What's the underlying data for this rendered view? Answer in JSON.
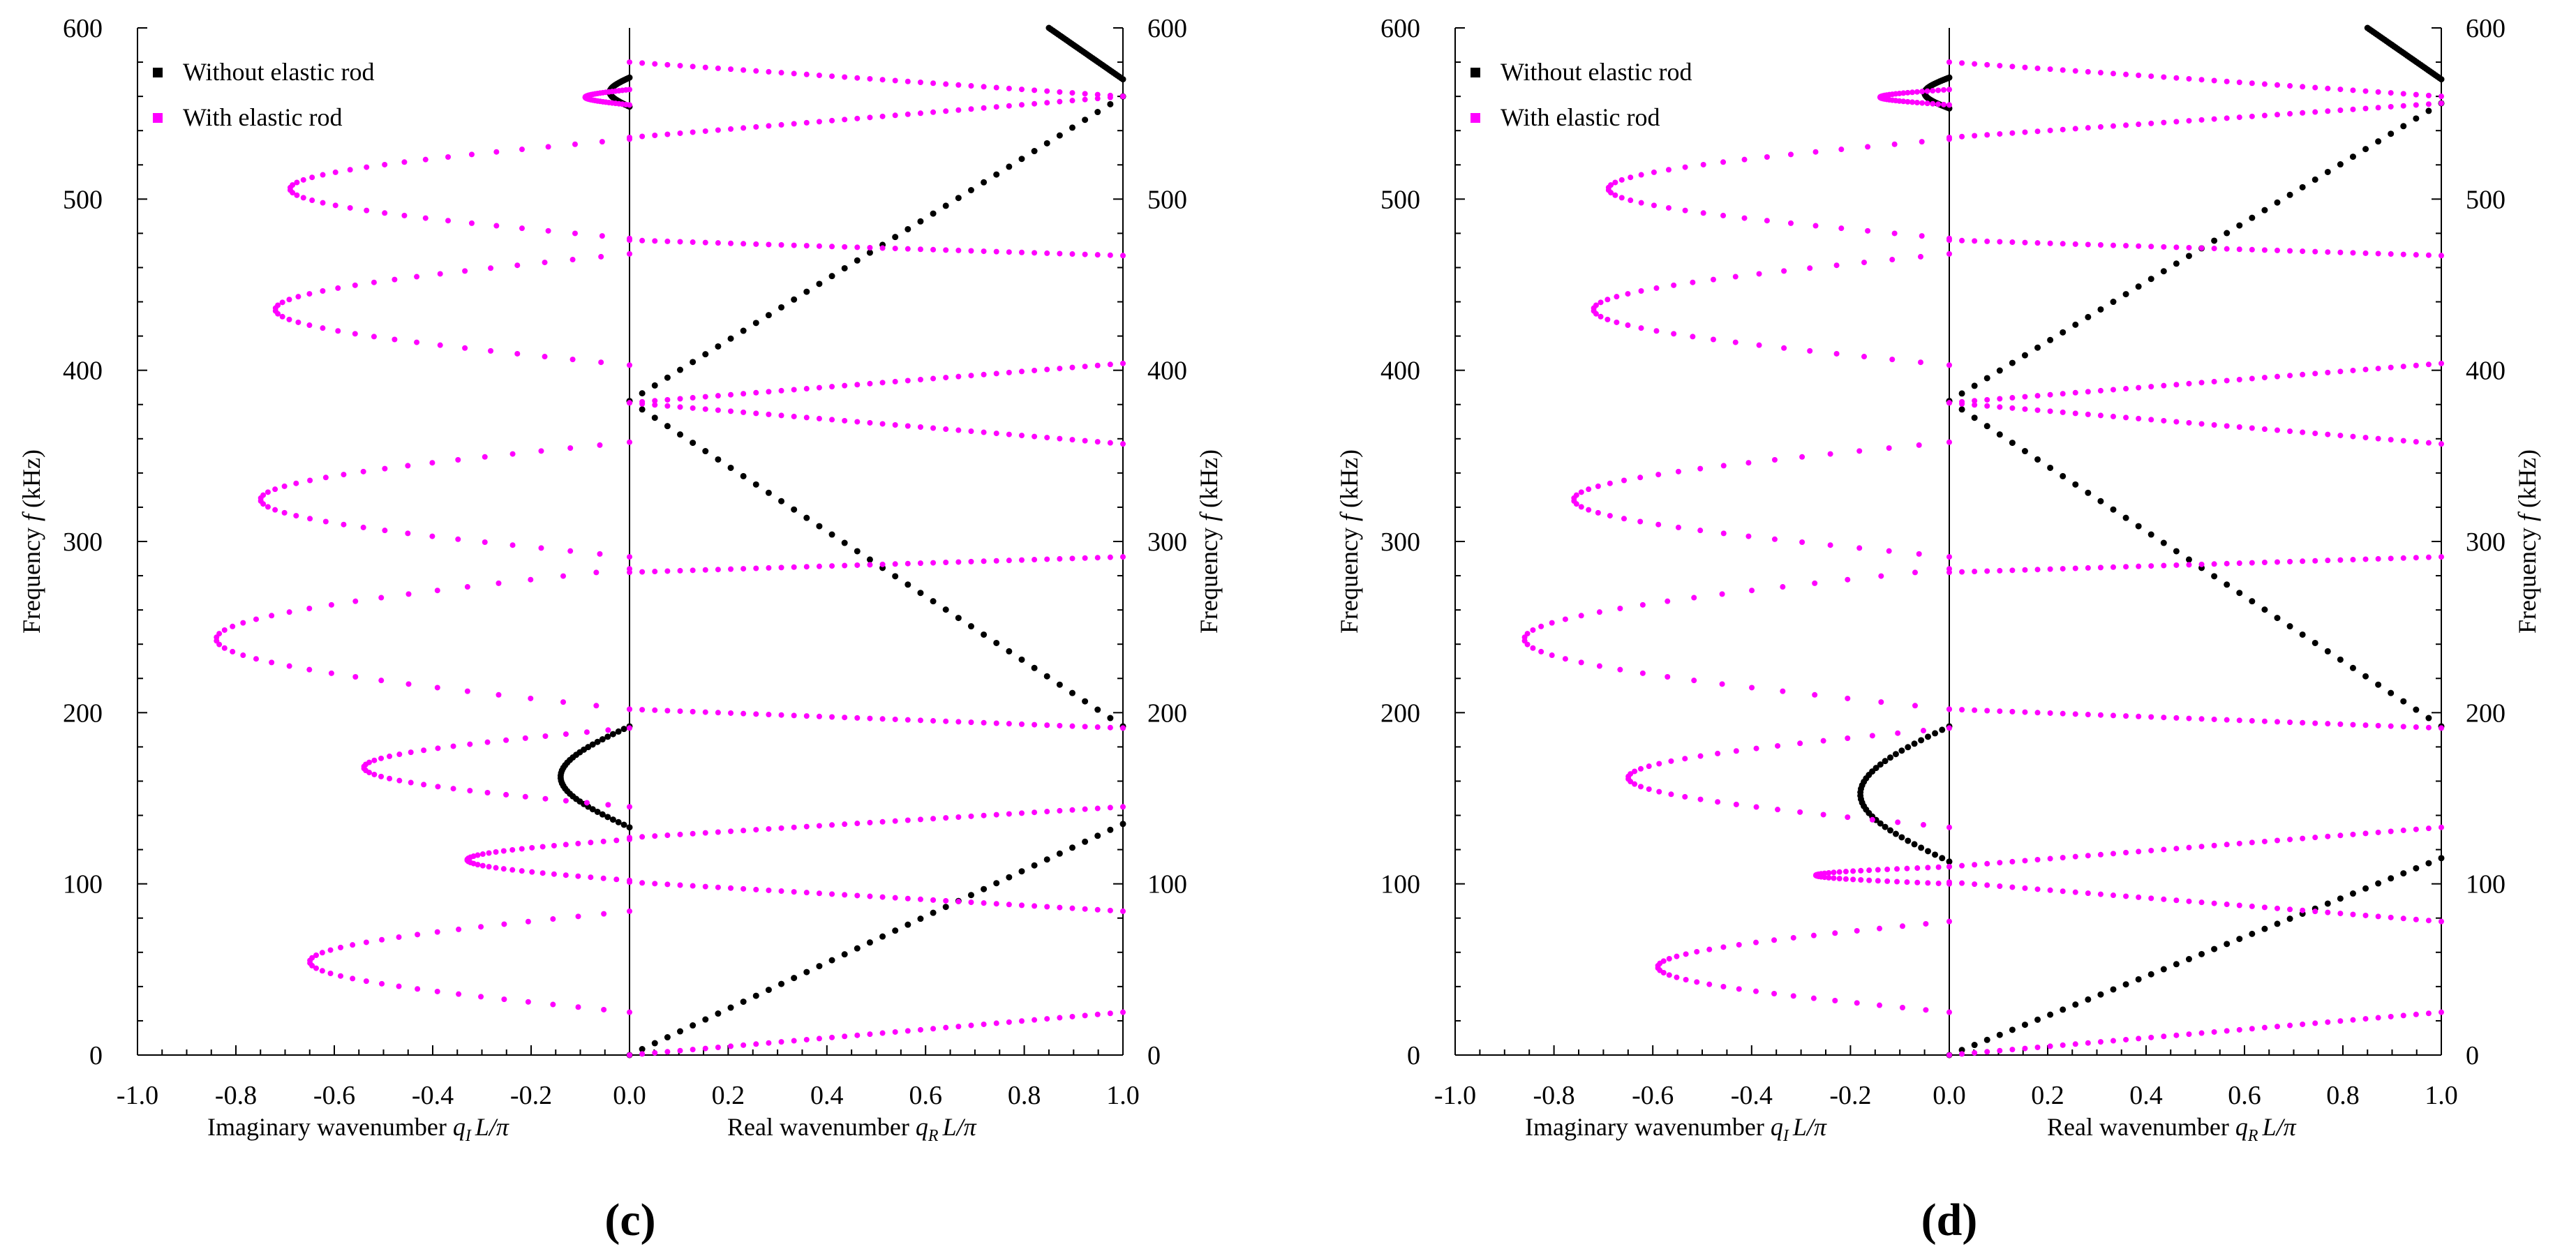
{
  "colors": {
    "without": "#000000",
    "with": "#ff00ff",
    "axis": "#000000"
  },
  "chart_data": [
    {
      "panel_label": "(c)",
      "type": "scatter",
      "x_left_ticks": [
        "-1.0",
        "-0.8",
        "-0.6",
        "-0.4",
        "-0.2",
        "0.0"
      ],
      "x_right_ticks": [
        "0.2",
        "0.4",
        "0.6",
        "0.8",
        "1.0"
      ],
      "y_ticks": [
        "0",
        "100",
        "200",
        "300",
        "400",
        "500",
        "600"
      ],
      "xlim_imag": [
        -1.0,
        0.0
      ],
      "xlim_real": [
        0.0,
        1.0
      ],
      "ylim": [
        0,
        600
      ],
      "xlabel_left": "Imaginary wavenumber",
      "xlabel_left_sym": "q",
      "xlabel_left_sub": "I",
      "xlabel_left_tail": "L/π",
      "xlabel_right": "Real wavenumber",
      "xlabel_right_sym": "q",
      "xlabel_right_sub": "R",
      "xlabel_right_tail": "L/π",
      "ylabel": "Frequency",
      "ylabel_sym": "f",
      "ylabel_unit": "(kHz)",
      "legend": [
        {
          "name": "Without elastic rod",
          "color": "#000000"
        },
        {
          "name": "With elastic rod",
          "color": "#ff00ff"
        }
      ],
      "series": [
        {
          "name": "Without elastic rod",
          "part": "real",
          "x": [
            0,
            1
          ],
          "y": [
            0,
            135
          ],
          "color": "#000000"
        },
        {
          "name": "Without elastic rod",
          "part": "real",
          "x": [
            1,
            0
          ],
          "y": [
            192,
            382
          ],
          "color": "#000000"
        },
        {
          "name": "Without elastic rod",
          "part": "real",
          "x": [
            0,
            1
          ],
          "y": [
            382,
            560
          ],
          "color": "#000000"
        },
        {
          "name": "Without elastic rod",
          "part": "real",
          "x": [
            0.85,
            1.0
          ],
          "y": [
            600,
            570
          ],
          "color": "#000000"
        },
        {
          "name": "Without elastic rod",
          "part": "imag",
          "x": [
            0,
            -0.14,
            0
          ],
          "y": [
            133,
            162,
            192
          ],
          "color": "#000000"
        },
        {
          "name": "Without elastic rod",
          "part": "imag",
          "x": [
            0,
            -0.04,
            0
          ],
          "y": [
            554,
            562,
            571
          ],
          "color": "#000000"
        },
        {
          "name": "With elastic rod",
          "part": "imag",
          "x": [
            0,
            -0.65,
            0
          ],
          "y": [
            25,
            55,
            84
          ],
          "color": "#ff00ff"
        },
        {
          "name": "With elastic rod",
          "part": "imag",
          "x": [
            0,
            -0.33,
            0
          ],
          "y": [
            102,
            113,
            126
          ],
          "color": "#ff00ff"
        },
        {
          "name": "With elastic rod",
          "part": "imag",
          "x": [
            0,
            -0.54,
            0
          ],
          "y": [
            145,
            168,
            191
          ],
          "color": "#ff00ff"
        },
        {
          "name": "With elastic rod",
          "part": "imag",
          "x": [
            0,
            -0.84,
            0
          ],
          "y": [
            202,
            245,
            284
          ],
          "color": "#ff00ff"
        },
        {
          "name": "With elastic rod",
          "part": "imag",
          "x": [
            0,
            -0.75,
            0
          ],
          "y": [
            291,
            324,
            358
          ],
          "color": "#ff00ff"
        },
        {
          "name": "With elastic rod",
          "part": "imag",
          "x": [
            0,
            -0.72,
            0
          ],
          "y": [
            403,
            437,
            468
          ],
          "color": "#ff00ff"
        },
        {
          "name": "With elastic rod",
          "part": "imag",
          "x": [
            0,
            -0.69,
            0
          ],
          "y": [
            477,
            506,
            535
          ],
          "color": "#ff00ff"
        },
        {
          "name": "With elastic rod",
          "part": "imag",
          "x": [
            0,
            -0.09,
            0
          ],
          "y": [
            555,
            560,
            564
          ],
          "color": "#ff00ff"
        },
        {
          "name": "With elastic rod",
          "part": "real",
          "x": [
            0,
            1
          ],
          "y": [
            0,
            25
          ],
          "color": "#ff00ff"
        },
        {
          "name": "With elastic rod",
          "part": "real",
          "x": [
            0,
            1
          ],
          "y": [
            101,
            84
          ],
          "color": "#ff00ff"
        },
        {
          "name": "With elastic rod",
          "part": "real",
          "x": [
            0,
            1
          ],
          "y": [
            127,
            145
          ],
          "color": "#ff00ff"
        },
        {
          "name": "With elastic rod",
          "part": "real",
          "x": [
            0,
            1
          ],
          "y": [
            202,
            191
          ],
          "color": "#ff00ff"
        },
        {
          "name": "With elastic rod",
          "part": "real",
          "x": [
            0,
            1
          ],
          "y": [
            282,
            291
          ],
          "color": "#ff00ff"
        },
        {
          "name": "With elastic rod",
          "part": "real",
          "x": [
            0,
            1
          ],
          "y": [
            381,
            357
          ],
          "color": "#ff00ff"
        },
        {
          "name": "With elastic rod",
          "part": "real",
          "x": [
            0,
            1
          ],
          "y": [
            381,
            404
          ],
          "color": "#ff00ff"
        },
        {
          "name": "With elastic rod",
          "part": "real",
          "x": [
            0,
            1
          ],
          "y": [
            476,
            467
          ],
          "color": "#ff00ff"
        },
        {
          "name": "With elastic rod",
          "part": "real",
          "x": [
            0,
            1
          ],
          "y": [
            536,
            560
          ],
          "color": "#ff00ff"
        },
        {
          "name": "With elastic rod",
          "part": "real",
          "x": [
            0,
            1
          ],
          "y": [
            580,
            560
          ],
          "color": "#ff00ff"
        }
      ]
    },
    {
      "panel_label": "(d)",
      "type": "scatter",
      "x_left_ticks": [
        "-1.0",
        "-0.8",
        "-0.6",
        "-0.4",
        "-0.2",
        "0.0"
      ],
      "x_right_ticks": [
        "0.2",
        "0.4",
        "0.6",
        "0.8",
        "1.0"
      ],
      "y_ticks": [
        "0",
        "100",
        "200",
        "300",
        "400",
        "500",
        "600"
      ],
      "xlim_imag": [
        -1.0,
        0.0
      ],
      "xlim_real": [
        0.0,
        1.0
      ],
      "ylim": [
        0,
        600
      ],
      "xlabel_left": "Imaginary wavenumber",
      "xlabel_left_sym": "q",
      "xlabel_left_sub": "I",
      "xlabel_left_tail": "L/π",
      "xlabel_right": "Real wavenumber",
      "xlabel_right_sym": "q",
      "xlabel_right_sub": "R",
      "xlabel_right_tail": "L/π",
      "ylabel": "Frequency",
      "ylabel_sym": "f",
      "ylabel_unit": "(kHz)",
      "legend": [
        {
          "name": "Without elastic rod",
          "color": "#000000"
        },
        {
          "name": "With elastic rod",
          "color": "#ff00ff"
        }
      ],
      "series": [
        {
          "name": "Without elastic rod",
          "part": "real",
          "x": [
            0,
            1
          ],
          "y": [
            0,
            115
          ],
          "color": "#000000"
        },
        {
          "name": "Without elastic rod",
          "part": "real",
          "x": [
            1,
            0
          ],
          "y": [
            192,
            382
          ],
          "color": "#000000"
        },
        {
          "name": "Without elastic rod",
          "part": "real",
          "x": [
            0,
            1
          ],
          "y": [
            382,
            556
          ],
          "color": "#000000"
        },
        {
          "name": "Without elastic rod",
          "part": "real",
          "x": [
            0.85,
            1.0
          ],
          "y": [
            600,
            570
          ],
          "color": "#000000"
        },
        {
          "name": "Without elastic rod",
          "part": "imag",
          "x": [
            0,
            -0.18,
            0
          ],
          "y": [
            113,
            152,
            192
          ],
          "color": "#000000"
        },
        {
          "name": "Without elastic rod",
          "part": "imag",
          "x": [
            0,
            -0.05,
            0
          ],
          "y": [
            553,
            562,
            571
          ],
          "color": "#000000"
        },
        {
          "name": "With elastic rod",
          "part": "imag",
          "x": [
            0,
            -0.59,
            0
          ],
          "y": [
            25,
            50,
            78
          ],
          "color": "#ff00ff"
        },
        {
          "name": "With elastic rod",
          "part": "imag",
          "x": [
            0,
            -0.27,
            0
          ],
          "y": [
            100,
            105,
            110
          ],
          "color": "#ff00ff"
        },
        {
          "name": "With elastic rod",
          "part": "imag",
          "x": [
            0,
            -0.65,
            0
          ],
          "y": [
            133,
            164,
            191
          ],
          "color": "#ff00ff"
        },
        {
          "name": "With elastic rod",
          "part": "imag",
          "x": [
            0,
            -0.86,
            0
          ],
          "y": [
            202,
            242,
            284
          ],
          "color": "#ff00ff"
        },
        {
          "name": "With elastic rod",
          "part": "imag",
          "x": [
            0,
            -0.76,
            0
          ],
          "y": [
            291,
            322,
            358
          ],
          "color": "#ff00ff"
        },
        {
          "name": "With elastic rod",
          "part": "imag",
          "x": [
            0,
            -0.72,
            0
          ],
          "y": [
            403,
            437,
            468
          ],
          "color": "#ff00ff"
        },
        {
          "name": "With elastic rod",
          "part": "imag",
          "x": [
            0,
            -0.69,
            0
          ],
          "y": [
            477,
            504,
            535
          ],
          "color": "#ff00ff"
        },
        {
          "name": "With elastic rod",
          "part": "imag",
          "x": [
            0,
            -0.14,
            0
          ],
          "y": [
            555,
            559,
            564
          ],
          "color": "#ff00ff"
        },
        {
          "name": "With elastic rod",
          "part": "real",
          "x": [
            0,
            1
          ],
          "y": [
            0,
            25
          ],
          "color": "#ff00ff"
        },
        {
          "name": "With elastic rod",
          "part": "real",
          "x": [
            0,
            1
          ],
          "y": [
            101,
            78
          ],
          "color": "#ff00ff"
        },
        {
          "name": "With elastic rod",
          "part": "real",
          "x": [
            0,
            1
          ],
          "y": [
            110,
            133
          ],
          "color": "#ff00ff"
        },
        {
          "name": "With elastic rod",
          "part": "real",
          "x": [
            0,
            1
          ],
          "y": [
            202,
            191
          ],
          "color": "#ff00ff"
        },
        {
          "name": "With elastic rod",
          "part": "real",
          "x": [
            0,
            1
          ],
          "y": [
            282,
            291
          ],
          "color": "#ff00ff"
        },
        {
          "name": "With elastic rod",
          "part": "real",
          "x": [
            0,
            1
          ],
          "y": [
            381,
            357
          ],
          "color": "#ff00ff"
        },
        {
          "name": "With elastic rod",
          "part": "real",
          "x": [
            0,
            1
          ],
          "y": [
            381,
            404
          ],
          "color": "#ff00ff"
        },
        {
          "name": "With elastic rod",
          "part": "real",
          "x": [
            0,
            1
          ],
          "y": [
            476,
            467
          ],
          "color": "#ff00ff"
        },
        {
          "name": "With elastic rod",
          "part": "real",
          "x": [
            0,
            1
          ],
          "y": [
            536,
            556
          ],
          "color": "#ff00ff"
        },
        {
          "name": "With elastic rod",
          "part": "real",
          "x": [
            0,
            1
          ],
          "y": [
            580,
            560
          ],
          "color": "#ff00ff"
        }
      ]
    }
  ]
}
